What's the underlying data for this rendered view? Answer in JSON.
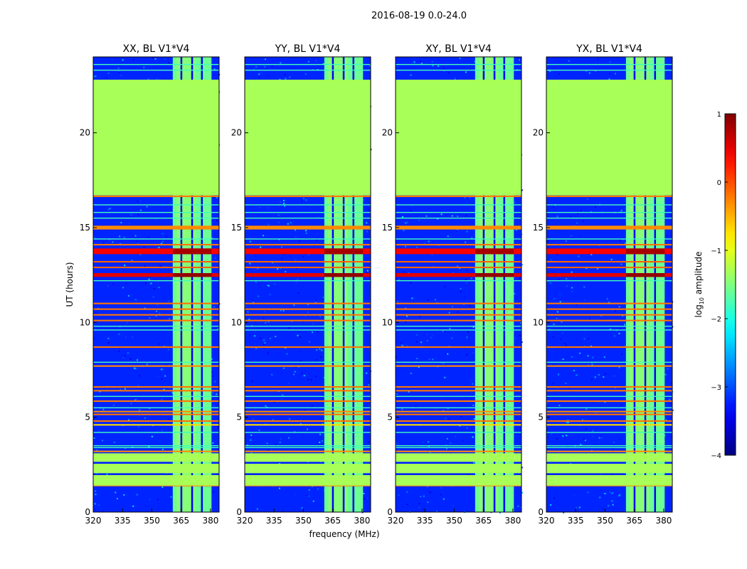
{
  "chart_data": {
    "type": "heatmap",
    "suptitle": "2016-08-19 0.0-24.0",
    "xlabel": "frequency (MHz)",
    "ylabel": "UT (hours)",
    "xlim": [
      320,
      384.4
    ],
    "ylim": [
      0,
      24
    ],
    "xticks": [
      320,
      335,
      350,
      365,
      380
    ],
    "yticks": [
      0,
      5,
      10,
      15,
      20
    ],
    "panels": [
      {
        "title": "XX, BL V1*V4"
      },
      {
        "title": "YY, BL V1*V4"
      },
      {
        "title": "XY, BL V1*V4"
      },
      {
        "title": "YX, BL V1*V4"
      }
    ],
    "colorbar": {
      "label_main": "log",
      "label_sub": "10",
      "label_rest": " amplitude",
      "range": [
        -4,
        1
      ],
      "ticks": [
        1,
        0,
        -1,
        -2,
        -3,
        -4
      ],
      "tick_labels": [
        "1",
        "0",
        "−1",
        "−2",
        "−3",
        "−4"
      ],
      "colormap": "jet"
    },
    "background_value": -3.2,
    "flagged_value": -1.3,
    "flagged_ranges_hours": [
      [
        16.7,
        22.8
      ],
      [
        1.4,
        1.95
      ],
      [
        2.05,
        2.55
      ],
      [
        2.65,
        3.1
      ]
    ],
    "rfi_band_mhz": [
      360.7,
      380.5
    ],
    "rfi_band_value": -1.6,
    "rfi_gaps_mhz": [
      365,
      370.5,
      375.5
    ],
    "strong_lines": [
      {
        "t": 16.65,
        "v": 0.2
      },
      {
        "t": 15.0,
        "v": 0.1,
        "w": 0.2
      },
      {
        "t": 14.1,
        "v": 0.2
      },
      {
        "t": 13.75,
        "v": 0.8,
        "w": 0.3
      },
      {
        "t": 13.2,
        "v": 0.3
      },
      {
        "t": 12.9,
        "v": 0.3
      },
      {
        "t": 12.5,
        "v": 0.9,
        "w": 0.2
      },
      {
        "t": 11.0,
        "v": 0.2
      },
      {
        "t": 10.7,
        "v": 0.2
      },
      {
        "t": 10.4,
        "v": 0.2
      },
      {
        "t": 10.1,
        "v": 0.2
      },
      {
        "t": 8.7,
        "v": 0.2
      },
      {
        "t": 7.7,
        "v": 0.1
      },
      {
        "t": 6.6,
        "v": 0.2
      },
      {
        "t": 6.4,
        "v": 0.2
      },
      {
        "t": 5.85,
        "v": 0.2
      },
      {
        "t": 5.3,
        "v": 0.1
      },
      {
        "t": 5.15,
        "v": 0.2
      },
      {
        "t": 4.8,
        "v": 0.2
      },
      {
        "t": 4.6,
        "v": -0.3
      },
      {
        "t": 3.2,
        "v": 0.1
      },
      {
        "t": 1.4,
        "v": 0.1
      }
    ],
    "faint_lines": [
      23.6,
      23.3,
      16.2,
      15.8,
      15.5,
      14.4,
      12.2,
      9.8,
      9.6,
      7.9,
      6.1,
      5.5,
      4.2,
      3.4,
      3.5
    ]
  }
}
